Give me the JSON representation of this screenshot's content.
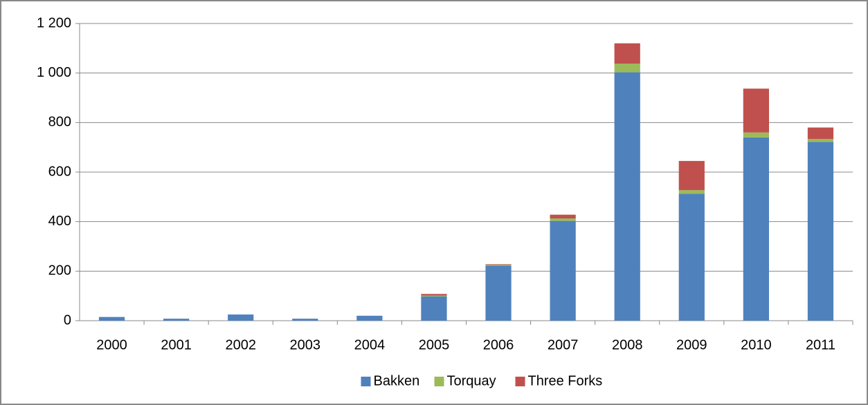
{
  "chart_data": {
    "type": "stacked_bar",
    "categories": [
      "2000",
      "2001",
      "2002",
      "2003",
      "2004",
      "2005",
      "2006",
      "2007",
      "2008",
      "2009",
      "2010",
      "2011"
    ],
    "series": [
      {
        "name": "Bakken",
        "color": "#4f81bd",
        "values": [
          15,
          8,
          25,
          8,
          20,
          98,
          222,
          403,
          1003,
          512,
          740,
          722
        ]
      },
      {
        "name": "Torquay",
        "color": "#9bbb59",
        "values": [
          0,
          0,
          0,
          0,
          0,
          3,
          4,
          10,
          35,
          15,
          20,
          12
        ]
      },
      {
        "name": "Three Forks",
        "color": "#c0504d",
        "values": [
          0,
          0,
          0,
          0,
          0,
          7,
          2,
          15,
          82,
          118,
          177,
          46
        ]
      }
    ],
    "ylim": [
      0,
      1200
    ],
    "yticks": [
      0,
      200,
      400,
      600,
      800,
      {
        "value": 1000,
        "label": "1 000"
      },
      {
        "value": 1200,
        "label": "1 200"
      }
    ],
    "grid": true,
    "legend": "bottom"
  }
}
